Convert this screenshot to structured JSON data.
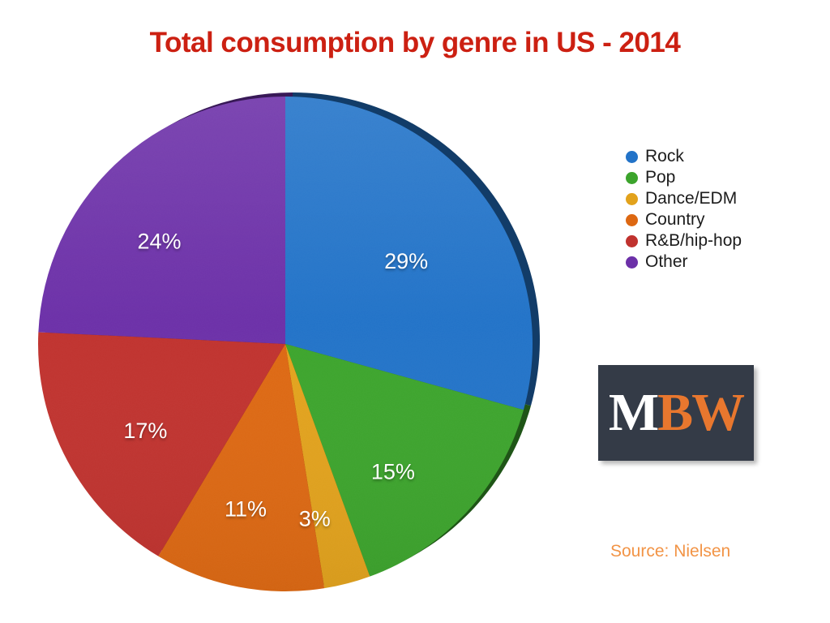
{
  "page": {
    "background": "#ffffff"
  },
  "chart_data": {
    "type": "pie",
    "title": "Total consumption by genre in US - 2014",
    "title_color": "#cc2012",
    "slices": [
      {
        "label": "Rock",
        "value": 29,
        "display": "29%",
        "color": "#2273c8"
      },
      {
        "label": "Pop",
        "value": 15,
        "display": "15%",
        "color": "#3ca42c"
      },
      {
        "label": "Dance/EDM",
        "value": 3,
        "display": "3%",
        "color": "#e2a21c"
      },
      {
        "label": "Country",
        "value": 11,
        "display": "11%",
        "color": "#dd6812"
      },
      {
        "label": "R&B/hip-hop",
        "value": 17,
        "display": "17%",
        "color": "#c0322e"
      },
      {
        "label": "Other",
        "value": 24,
        "display": "24%",
        "color": "#6c30a8"
      }
    ],
    "slice_label_color": "#ffffff",
    "start_at": "12-oclock",
    "direction": "clockwise",
    "legend_position": "right",
    "effect_3d_rim": true
  },
  "legend": {
    "text_color": "#1c1c1c"
  },
  "logo": {
    "part1": "M",
    "part2": "BW",
    "bg_color": "#343b47",
    "part1_color": "#ffffff",
    "part2_color": "#e8772e"
  },
  "source": {
    "text": "Source: Nielsen",
    "color": "#f29446"
  }
}
